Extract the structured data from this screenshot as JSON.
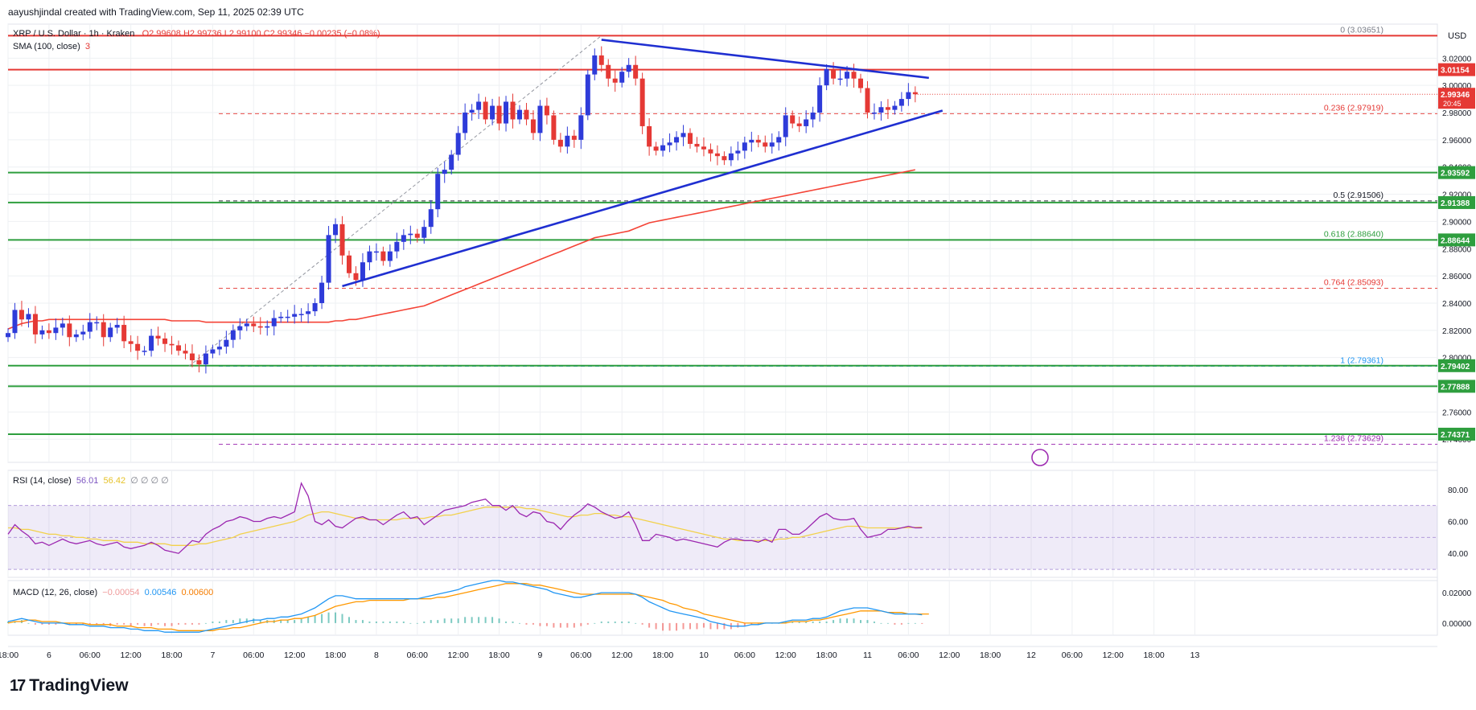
{
  "header": {
    "attribution": "aayushjindal created with TradingView.com, Sep 11, 2025 02:39 UTC",
    "symbol": "XRP / U.S. Dollar · 1h · Kraken",
    "ohlc": "O2.99608  H2.99736  L2.99100  C2.99346  −0.00235 (−0.08%)",
    "sma_label": "SMA (100, close)",
    "sma_value": "3",
    "currency": "USD"
  },
  "branding": {
    "logo_text": "TradingView",
    "logo_icon": "tradingview-logo-icon"
  },
  "colors": {
    "up": "#2e3bd9",
    "down": "#e53935",
    "sma": "#f44336",
    "trend": "#1f2fd1",
    "support": "#2e9e3e",
    "resistance": "#e53935",
    "rsi": "#9c27b0",
    "rsi_ma": "#f2d14b",
    "macd": "#2196f3",
    "signal": "#ff9800",
    "grid": "#eef0f3"
  },
  "chart_data": {
    "type": "candlestick",
    "title": "XRP / U.S. Dollar · 1h · Kraken",
    "ylim": [
      2.723,
      3.045
    ],
    "x_ticks": [
      {
        "label": "18:00",
        "h": 0
      },
      {
        "label": "6",
        "h": 6
      },
      {
        "label": "06:00",
        "h": 12
      },
      {
        "label": "12:00",
        "h": 18
      },
      {
        "label": "18:00",
        "h": 24
      },
      {
        "label": "7",
        "h": 30
      },
      {
        "label": "06:00",
        "h": 36
      },
      {
        "label": "12:00",
        "h": 42
      },
      {
        "label": "18:00",
        "h": 48
      },
      {
        "label": "8",
        "h": 54
      },
      {
        "label": "06:00",
        "h": 60
      },
      {
        "label": "12:00",
        "h": 66
      },
      {
        "label": "18:00",
        "h": 72
      },
      {
        "label": "9",
        "h": 78
      },
      {
        "label": "06:00",
        "h": 84
      },
      {
        "label": "12:00",
        "h": 90
      },
      {
        "label": "18:00",
        "h": 96
      },
      {
        "label": "10",
        "h": 102
      },
      {
        "label": "06:00",
        "h": 108
      },
      {
        "label": "12:00",
        "h": 114
      },
      {
        "label": "18:00",
        "h": 120
      },
      {
        "label": "11",
        "h": 126
      },
      {
        "label": "06:00",
        "h": 132
      },
      {
        "label": "12:00",
        "h": 138
      },
      {
        "label": "18:00",
        "h": 144
      },
      {
        "label": "12",
        "h": 150
      },
      {
        "label": "06:00",
        "h": 156
      },
      {
        "label": "12:00",
        "h": 162
      },
      {
        "label": "18:00",
        "h": 168
      },
      {
        "label": "13",
        "h": 174
      }
    ],
    "y_ticks": [
      "3.02000",
      "3.00000",
      "2.98000",
      "2.96000",
      "2.94000",
      "2.92000",
      "2.90000",
      "2.88000",
      "2.86000",
      "2.84000",
      "2.82000",
      "2.80000",
      "2.78000",
      "2.76000",
      "2.74000"
    ],
    "close": [
      2.818,
      2.835,
      2.828,
      2.832,
      2.817,
      2.82,
      2.818,
      2.822,
      2.825,
      2.815,
      2.817,
      2.819,
      2.826,
      2.826,
      2.815,
      2.822,
      2.824,
      2.812,
      2.81,
      2.805,
      2.805,
      2.816,
      2.814,
      2.81,
      2.809,
      2.805,
      2.803,
      2.798,
      2.795,
      2.803,
      2.806,
      2.808,
      2.813,
      2.82,
      2.823,
      2.825,
      2.823,
      2.822,
      2.823,
      2.829,
      2.83,
      2.83,
      2.832,
      2.832,
      2.834,
      2.84,
      2.855,
      2.89,
      2.898,
      2.875,
      2.862,
      2.857,
      2.87,
      2.878,
      2.878,
      2.871,
      2.878,
      2.885,
      2.89,
      2.891,
      2.888,
      2.896,
      2.909,
      2.935,
      2.938,
      2.949,
      2.965,
      2.98,
      2.982,
      2.988,
      2.975,
      2.985,
      2.972,
      2.988,
      2.975,
      2.982,
      2.975,
      2.965,
      2.985,
      2.978,
      2.96,
      2.955,
      2.963,
      2.96,
      2.978,
      3.008,
      3.022,
      3.015,
      3.005,
      3.002,
      3.01,
      3.015,
      3.005,
      2.97,
      2.955,
      2.952,
      2.956,
      2.958,
      2.962,
      2.965,
      2.957,
      2.955,
      2.953,
      2.95,
      2.948,
      2.945,
      2.95,
      2.952,
      2.958,
      2.96,
      2.958,
      2.955,
      2.958,
      2.962,
      2.978,
      2.972,
      2.97,
      2.975,
      2.98,
      3.0,
      3.012,
      3.005,
      3.005,
      3.01,
      3.005,
      2.998,
      2.98,
      2.98,
      2.984,
      2.982,
      2.985,
      2.99,
      2.995,
      2.99346
    ],
    "sma100": [
      2.821,
      2.823,
      2.825,
      2.826,
      2.827,
      2.827,
      2.828,
      2.828,
      2.828,
      2.828,
      2.828,
      2.828,
      2.828,
      2.828,
      2.828,
      2.828,
      2.828,
      2.828,
      2.828,
      2.828,
      2.828,
      2.828,
      2.828,
      2.828,
      2.827,
      2.827,
      2.827,
      2.827,
      2.827,
      2.826,
      2.826,
      2.826,
      2.826,
      2.826,
      2.826,
      2.826,
      2.826,
      2.826,
      2.826,
      2.826,
      2.826,
      2.826,
      2.826,
      2.826,
      2.826,
      2.826,
      2.826,
      2.826,
      2.827,
      2.827,
      2.828,
      2.828,
      2.829,
      2.83,
      2.831,
      2.832,
      2.833,
      2.834,
      2.835,
      2.836,
      2.837,
      2.838,
      2.84,
      2.842,
      2.844,
      2.846,
      2.848,
      2.85,
      2.852,
      2.854,
      2.856,
      2.858,
      2.86,
      2.862,
      2.864,
      2.866,
      2.868,
      2.87,
      2.872,
      2.874,
      2.876,
      2.878,
      2.88,
      2.882,
      2.884,
      2.886,
      2.888,
      2.889,
      2.89,
      2.891,
      2.892,
      2.893,
      2.895,
      2.897,
      2.899,
      2.9,
      2.901,
      2.902,
      2.903,
      2.904,
      2.905,
      2.906,
      2.907,
      2.908,
      2.909,
      2.91,
      2.911,
      2.912,
      2.913,
      2.914,
      2.915,
      2.916,
      2.917,
      2.918,
      2.919,
      2.92,
      2.921,
      2.922,
      2.923,
      2.924,
      2.925,
      2.926,
      2.927,
      2.928,
      2.929,
      2.93,
      2.931,
      2.932,
      2.933,
      2.934,
      2.935,
      2.936,
      2.937,
      2.938
    ],
    "sma100_start_index": 30,
    "levels_green": [
      {
        "price": 2.93592,
        "label": "2.93592"
      },
      {
        "price": 2.91388,
        "label": "2.91388"
      },
      {
        "price": 2.88644,
        "label": "2.88644"
      },
      {
        "price": 2.79402,
        "label": "2.79402"
      },
      {
        "price": 2.77888,
        "label": "2.77888"
      },
      {
        "price": 2.74371,
        "label": "2.74371"
      }
    ],
    "levels_red": [
      {
        "price": 3.03651,
        "label": ""
      },
      {
        "price": 3.01154,
        "label": "3.01154"
      }
    ],
    "price_tag": {
      "price": 2.99346,
      "label": "2.99346",
      "countdown": "20:45"
    },
    "fib": [
      {
        "ratio": "0",
        "price": 3.03651,
        "text": "0 (3.03651)",
        "color": "#787b86"
      },
      {
        "ratio": "0.236",
        "price": 2.97919,
        "text": "0.236 (2.97919)",
        "color": "#e53935"
      },
      {
        "ratio": "0.5",
        "price": 2.91506,
        "text": "0.5 (2.91506)",
        "color": "#131722"
      },
      {
        "ratio": "0.618",
        "price": 2.8864,
        "text": "0.618 (2.88640)",
        "color": "#2e9e3e"
      },
      {
        "ratio": "0.764",
        "price": 2.85093,
        "text": "0.764 (2.85093)",
        "color": "#e53935"
      },
      {
        "ratio": "1",
        "price": 2.79361,
        "text": "1 (2.79361)",
        "color": "#2196f3"
      },
      {
        "ratio": "1.236",
        "price": 2.73629,
        "text": "1.236 (2.73629)",
        "color": "#9c27b0"
      }
    ],
    "trendlines": [
      {
        "from": {
          "h": 49,
          "p": 2.8525
        },
        "to": {
          "h": 137,
          "p": 2.9815
        }
      },
      {
        "from": {
          "h": 87,
          "p": 3.0335
        },
        "to": {
          "h": 135,
          "p": 3.0055
        }
      }
    ],
    "rsi": {
      "label": "RSI (14, close)",
      "value": "56.01",
      "ma_value": "56.42",
      "extras": "∅  ∅  ∅  ∅",
      "ylim": [
        25,
        92
      ],
      "ticks": [
        "80.00",
        "60.00",
        "40.00"
      ],
      "band": [
        30,
        70
      ],
      "values": [
        52,
        58,
        54,
        51,
        46,
        47,
        45,
        47,
        49,
        47,
        46,
        47,
        48,
        46,
        45,
        46,
        47,
        44,
        43,
        44,
        45,
        47,
        45,
        42,
        41,
        40,
        44,
        48,
        47,
        52,
        55,
        57,
        60,
        61,
        63,
        62,
        60,
        60,
        62,
        63,
        62,
        64,
        66,
        84,
        76,
        60,
        58,
        61,
        57,
        56,
        59,
        62,
        63,
        61,
        61,
        58,
        61,
        64,
        66,
        62,
        63,
        58,
        61,
        64,
        67,
        68,
        69,
        70,
        72,
        73,
        74,
        70,
        70,
        67,
        70,
        65,
        63,
        66,
        65,
        60,
        59,
        55,
        60,
        64,
        67,
        71,
        69,
        66,
        64,
        62,
        63,
        66,
        58,
        48,
        48,
        52,
        51,
        50,
        48,
        49,
        48,
        47,
        46,
        45,
        44,
        47,
        49,
        49,
        48,
        48,
        47,
        49,
        47,
        55,
        55,
        52,
        52,
        55,
        59,
        63,
        65,
        62,
        61,
        61,
        62,
        55,
        50,
        51,
        52,
        55,
        55,
        56,
        57,
        56,
        56.01
      ],
      "ma": [
        56,
        56,
        55,
        55,
        54,
        53,
        52,
        52,
        51,
        51,
        50,
        50,
        49,
        49,
        48,
        48,
        48,
        47,
        47,
        47,
        46,
        46,
        46,
        46,
        45,
        45,
        45,
        45,
        46,
        46,
        47,
        48,
        49,
        50,
        52,
        53,
        54,
        55,
        56,
        57,
        58,
        59,
        60,
        62,
        64,
        65,
        66,
        66,
        65,
        64,
        63,
        62,
        62,
        61,
        61,
        61,
        61,
        61,
        62,
        62,
        62,
        62,
        63,
        63,
        64,
        64,
        65,
        66,
        67,
        68,
        69,
        69,
        69,
        69,
        69,
        69,
        68,
        68,
        67,
        66,
        65,
        64,
        63,
        63,
        64,
        64,
        65,
        65,
        64,
        64,
        63,
        63,
        62,
        61,
        60,
        59,
        58,
        57,
        56,
        55,
        54,
        53,
        52,
        51,
        50,
        49,
        49,
        48,
        48,
        48,
        48,
        48,
        48,
        49,
        49,
        50,
        50,
        51,
        52,
        53,
        54,
        55,
        56,
        57,
        57,
        57,
        56,
        56,
        56,
        56,
        56,
        56,
        56.2,
        56.3,
        56.42
      ]
    },
    "macd": {
      "label": "MACD (12, 26, close)",
      "hist_value": "−0.00054",
      "macd_value": "0.00546",
      "signal_value": "0.00600",
      "ylim": [
        -0.008,
        0.028
      ],
      "ticks": [
        "0.02000",
        "0.00000"
      ],
      "macd": [
        0.001,
        0.002,
        0.003,
        0.002,
        0.001,
        0.0,
        0.0,
        0.0,
        0.0,
        -0.001,
        -0.001,
        -0.001,
        -0.002,
        -0.002,
        -0.002,
        -0.003,
        -0.003,
        -0.003,
        -0.004,
        -0.004,
        -0.005,
        -0.005,
        -0.005,
        -0.006,
        -0.006,
        -0.006,
        -0.006,
        -0.006,
        -0.006,
        -0.005,
        -0.004,
        -0.003,
        -0.002,
        -0.001,
        0.0,
        0.001,
        0.002,
        0.002,
        0.003,
        0.003,
        0.004,
        0.004,
        0.005,
        0.006,
        0.008,
        0.01,
        0.013,
        0.016,
        0.018,
        0.018,
        0.017,
        0.016,
        0.016,
        0.016,
        0.016,
        0.016,
        0.016,
        0.016,
        0.016,
        0.016,
        0.016,
        0.017,
        0.018,
        0.019,
        0.02,
        0.021,
        0.022,
        0.024,
        0.025,
        0.026,
        0.027,
        0.028,
        0.028,
        0.027,
        0.027,
        0.026,
        0.025,
        0.024,
        0.023,
        0.022,
        0.02,
        0.019,
        0.018,
        0.017,
        0.017,
        0.018,
        0.019,
        0.02,
        0.02,
        0.02,
        0.02,
        0.02,
        0.019,
        0.017,
        0.014,
        0.012,
        0.01,
        0.008,
        0.007,
        0.006,
        0.005,
        0.004,
        0.003,
        0.001,
        0.0,
        -0.001,
        -0.002,
        -0.002,
        -0.002,
        -0.001,
        -0.001,
        0.0,
        0.0,
        0.0,
        0.001,
        0.002,
        0.002,
        0.002,
        0.003,
        0.003,
        0.004,
        0.006,
        0.008,
        0.009,
        0.01,
        0.01,
        0.01,
        0.009,
        0.008,
        0.007,
        0.006,
        0.006,
        0.006,
        0.006,
        0.00546
      ],
      "signal": [
        0.0,
        0.001,
        0.001,
        0.002,
        0.002,
        0.001,
        0.001,
        0.001,
        0.0,
        0.0,
        0.0,
        0.0,
        -0.001,
        -0.001,
        -0.001,
        -0.001,
        -0.002,
        -0.002,
        -0.002,
        -0.003,
        -0.003,
        -0.003,
        -0.004,
        -0.004,
        -0.004,
        -0.005,
        -0.005,
        -0.005,
        -0.005,
        -0.005,
        -0.005,
        -0.004,
        -0.004,
        -0.003,
        -0.003,
        -0.002,
        -0.001,
        0.0,
        0.001,
        0.001,
        0.002,
        0.002,
        0.003,
        0.003,
        0.004,
        0.005,
        0.007,
        0.009,
        0.011,
        0.012,
        0.013,
        0.014,
        0.014,
        0.015,
        0.015,
        0.015,
        0.015,
        0.015,
        0.015,
        0.016,
        0.016,
        0.016,
        0.016,
        0.017,
        0.017,
        0.018,
        0.019,
        0.02,
        0.021,
        0.022,
        0.023,
        0.024,
        0.025,
        0.026,
        0.026,
        0.026,
        0.026,
        0.025,
        0.025,
        0.024,
        0.023,
        0.022,
        0.021,
        0.02,
        0.019,
        0.019,
        0.019,
        0.019,
        0.019,
        0.019,
        0.019,
        0.019,
        0.019,
        0.018,
        0.017,
        0.016,
        0.015,
        0.013,
        0.012,
        0.01,
        0.009,
        0.008,
        0.006,
        0.005,
        0.004,
        0.003,
        0.002,
        0.001,
        0.0,
        0.0,
        0.0,
        0.0,
        0.0,
        0.0,
        0.0,
        0.001,
        0.001,
        0.001,
        0.002,
        0.002,
        0.003,
        0.004,
        0.005,
        0.006,
        0.007,
        0.008,
        0.008,
        0.008,
        0.008,
        0.007,
        0.007,
        0.007,
        0.006,
        0.006,
        0.006,
        0.006
      ]
    }
  }
}
